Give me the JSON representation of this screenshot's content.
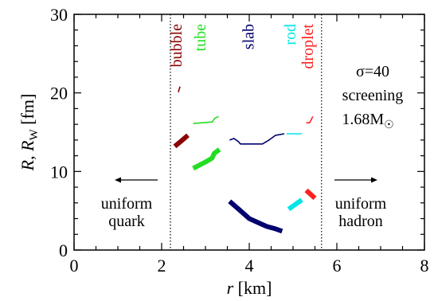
{
  "chart_data": {
    "type": "line",
    "xlabel": "r [km]",
    "ylabel": "R, R_W [fm]",
    "xlim": [
      0,
      8
    ],
    "ylim": [
      0,
      30
    ],
    "xticks": [
      0,
      2,
      4,
      6,
      8
    ],
    "yticks": [
      0,
      10,
      20,
      30
    ],
    "grid": false,
    "boundaries": [
      2.2,
      5.65
    ],
    "region_labels": {
      "left": [
        "uniform",
        "quark"
      ],
      "right": [
        "uniform",
        "hadron"
      ]
    },
    "info_text": {
      "sigma": "σ=40",
      "screening": "screening",
      "mass_value": "1.68M",
      "mass_symbol": "☉"
    },
    "phases": [
      {
        "name": "bubble",
        "color": "#8b0000",
        "label_x": 2.45
      },
      {
        "name": "tube",
        "color": "#22dd22",
        "label_x": 3.0
      },
      {
        "name": "slab",
        "color": "#00006e",
        "label_x": 4.1
      },
      {
        "name": "rod",
        "color": "#00e5e5",
        "label_x": 5.05
      },
      {
        "name": "droplet",
        "color": "#ff2020",
        "label_x": 5.45
      }
    ],
    "series": [
      {
        "phase": "bubble",
        "quantity": "R_W",
        "x": [
          2.38,
          2.42
        ],
        "y": [
          20.1,
          20.8
        ]
      },
      {
        "phase": "bubble",
        "quantity": "R",
        "x": [
          2.3,
          2.45,
          2.6
        ],
        "y": [
          13.2,
          13.9,
          14.6
        ]
      },
      {
        "phase": "tube",
        "quantity": "R_W",
        "x": [
          2.72,
          3.15,
          3.22,
          3.3
        ],
        "y": [
          16.1,
          16.3,
          16.8,
          17.0
        ]
      },
      {
        "phase": "tube",
        "quantity": "R",
        "x": [
          2.72,
          3.0,
          3.15,
          3.2,
          3.32
        ],
        "y": [
          10.4,
          11.2,
          11.7,
          12.3,
          12.8
        ]
      },
      {
        "phase": "slab",
        "quantity": "R_W",
        "x": [
          3.55,
          3.65,
          3.75,
          3.8,
          4.3,
          4.45,
          4.6,
          4.8
        ],
        "y": [
          14.0,
          14.2,
          13.8,
          13.5,
          13.5,
          14.0,
          14.6,
          14.8
        ]
      },
      {
        "phase": "slab",
        "quantity": "R",
        "x": [
          3.55,
          3.8,
          4.0,
          4.2,
          4.4,
          4.6,
          4.75
        ],
        "y": [
          6.2,
          5.0,
          4.0,
          3.5,
          3.0,
          2.7,
          2.4
        ]
      },
      {
        "phase": "rod",
        "quantity": "R_W",
        "x": [
          4.85,
          5.2
        ],
        "y": [
          14.8,
          14.8
        ]
      },
      {
        "phase": "rod",
        "quantity": "R",
        "x": [
          4.9,
          5.2
        ],
        "y": [
          5.2,
          6.4
        ]
      },
      {
        "phase": "droplet",
        "quantity": "R_W",
        "x": [
          5.3,
          5.38,
          5.45
        ],
        "y": [
          16.2,
          16.2,
          17.0
        ]
      },
      {
        "phase": "droplet",
        "quantity": "R",
        "x": [
          5.3,
          5.5
        ],
        "y": [
          7.6,
          6.6
        ]
      }
    ]
  }
}
